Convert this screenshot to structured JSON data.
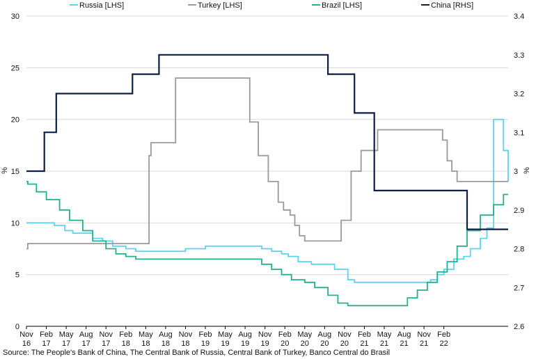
{
  "chart_data": {
    "type": "line",
    "step": true,
    "legend_position": "top",
    "grid": "horizontal",
    "source": "Source: The People's Bank of China, The Central Bank of Russia, Central Bank of Turkey, Banco Central do Brasil",
    "y_left": {
      "label": "%",
      "min": 0,
      "max": 30,
      "ticks": [
        "0",
        "5",
        "10",
        "15",
        "20",
        "25",
        "30"
      ]
    },
    "y_right": {
      "label": "%",
      "min": 2.6,
      "max": 3.4,
      "ticks": [
        "2.6",
        "2.7",
        "2.8",
        "2.9",
        "3",
        "3.1",
        "3.2",
        "3.3",
        "3.4"
      ]
    },
    "x_axis": {
      "start": "2016-11",
      "end": "2022-04",
      "ticks": [
        {
          "t": 0,
          "l1": "Nov",
          "l2": "16"
        },
        {
          "t": 3,
          "l1": "Feb",
          "l2": "17"
        },
        {
          "t": 6,
          "l1": "May",
          "l2": "17"
        },
        {
          "t": 9,
          "l1": "Aug",
          "l2": "17"
        },
        {
          "t": 12,
          "l1": "Nov",
          "l2": "17"
        },
        {
          "t": 15,
          "l1": "Feb",
          "l2": "18"
        },
        {
          "t": 18,
          "l1": "May",
          "l2": "18"
        },
        {
          "t": 21,
          "l1": "Aug",
          "l2": "18"
        },
        {
          "t": 24,
          "l1": "Nov",
          "l2": "18"
        },
        {
          "t": 27,
          "l1": "Feb",
          "l2": "19"
        },
        {
          "t": 30,
          "l1": "May",
          "l2": "19"
        },
        {
          "t": 33,
          "l1": "Aug",
          "l2": "19"
        },
        {
          "t": 36,
          "l1": "Nov",
          "l2": "19"
        },
        {
          "t": 39,
          "l1": "Feb",
          "l2": "20"
        },
        {
          "t": 42,
          "l1": "May",
          "l2": "20"
        },
        {
          "t": 45,
          "l1": "Aug",
          "l2": "20"
        },
        {
          "t": 48,
          "l1": "Nov",
          "l2": "20"
        },
        {
          "t": 51,
          "l1": "Feb",
          "l2": "21"
        },
        {
          "t": 54,
          "l1": "May",
          "l2": "21"
        },
        {
          "t": 57,
          "l1": "Aug",
          "l2": "21"
        },
        {
          "t": 60,
          "l1": "Nov",
          "l2": "21"
        },
        {
          "t": 63,
          "l1": "Feb",
          "l2": "22"
        }
      ]
    },
    "series": [
      {
        "name": "Russia [LHS]",
        "axis": "left",
        "color": "#5bd3f0",
        "points": [
          [
            0,
            10
          ],
          [
            4.2,
            9.75
          ],
          [
            5.8,
            9.25
          ],
          [
            7,
            9
          ],
          [
            10,
            8.5
          ],
          [
            11.5,
            8.25
          ],
          [
            13,
            7.75
          ],
          [
            15,
            7.5
          ],
          [
            16.5,
            7.25
          ],
          [
            24,
            7.5
          ],
          [
            27,
            7.75
          ],
          [
            35.5,
            7.5
          ],
          [
            37,
            7.25
          ],
          [
            38.5,
            7
          ],
          [
            39.5,
            6.75
          ],
          [
            41,
            6.25
          ],
          [
            43,
            6
          ],
          [
            46.5,
            5.5
          ],
          [
            48.5,
            4.5
          ],
          [
            49.5,
            4.25
          ],
          [
            60,
            4.25
          ],
          [
            61,
            4.5
          ],
          [
            62,
            5
          ],
          [
            63,
            5.5
          ],
          [
            64.5,
            6.5
          ],
          [
            66,
            6.75
          ],
          [
            67,
            7.5
          ],
          [
            68.5,
            8.5
          ],
          [
            69.5,
            9.5
          ],
          [
            70.5,
            20
          ],
          [
            72,
            17
          ],
          [
            72.7,
            14
          ]
        ]
      },
      {
        "name": "Turkey [LHS]",
        "axis": "left",
        "color": "#9a9a9a",
        "points": [
          [
            0,
            7.5
          ],
          [
            0.2,
            8
          ],
          [
            18.3,
            8
          ],
          [
            18.5,
            16.5
          ],
          [
            18.8,
            17.75
          ],
          [
            22,
            17.75
          ],
          [
            22.5,
            24
          ],
          [
            33,
            24
          ],
          [
            33.7,
            19.75
          ],
          [
            35,
            16.5
          ],
          [
            36.5,
            14
          ],
          [
            38,
            12
          ],
          [
            38.8,
            11.25
          ],
          [
            39.8,
            10.75
          ],
          [
            40.5,
            9.75
          ],
          [
            41.2,
            8.75
          ],
          [
            42,
            8.25
          ],
          [
            47,
            8.25
          ],
          [
            47.5,
            10.25
          ],
          [
            49,
            15
          ],
          [
            50.5,
            17
          ],
          [
            53,
            19
          ],
          [
            62,
            19
          ],
          [
            62.8,
            18
          ],
          [
            63.5,
            16
          ],
          [
            64.2,
            15
          ],
          [
            65,
            14
          ],
          [
            72.7,
            14
          ]
        ]
      },
      {
        "name": "Brazil [LHS]",
        "axis": "left",
        "color": "#24b08e",
        "points": [
          [
            0,
            14
          ],
          [
            0.2,
            13.75
          ],
          [
            1.5,
            13
          ],
          [
            3,
            12.25
          ],
          [
            5,
            11.25
          ],
          [
            6.5,
            10.25
          ],
          [
            8.5,
            9.25
          ],
          [
            10,
            8.25
          ],
          [
            12,
            7.5
          ],
          [
            13.5,
            7
          ],
          [
            15,
            6.75
          ],
          [
            16.5,
            6.5
          ],
          [
            34,
            6.5
          ],
          [
            35.5,
            6
          ],
          [
            37,
            5.5
          ],
          [
            38.5,
            5
          ],
          [
            40,
            4.5
          ],
          [
            42,
            4.25
          ],
          [
            43.5,
            3.75
          ],
          [
            45.5,
            3
          ],
          [
            47,
            2.25
          ],
          [
            48.5,
            2
          ],
          [
            56.5,
            2
          ],
          [
            57.5,
            2.75
          ],
          [
            59,
            3.5
          ],
          [
            60.5,
            4.25
          ],
          [
            62,
            5.25
          ],
          [
            63.5,
            6.25
          ],
          [
            65,
            7.75
          ],
          [
            66.5,
            9.25
          ],
          [
            68.5,
            10.75
          ],
          [
            70.5,
            11.75
          ],
          [
            72,
            12.75
          ],
          [
            72.7,
            12.75
          ]
        ]
      },
      {
        "name": "China [RHS]",
        "axis": "right",
        "color": "#0d1f45",
        "points": [
          [
            0,
            3
          ],
          [
            2.7,
            3.1
          ],
          [
            4.5,
            3.2
          ],
          [
            16,
            3.25
          ],
          [
            20,
            3.3
          ],
          [
            45.5,
            3.25
          ],
          [
            49.5,
            3.15
          ],
          [
            52.5,
            2.95
          ],
          [
            66.5,
            2.85
          ],
          [
            72.7,
            2.85
          ]
        ]
      }
    ]
  }
}
